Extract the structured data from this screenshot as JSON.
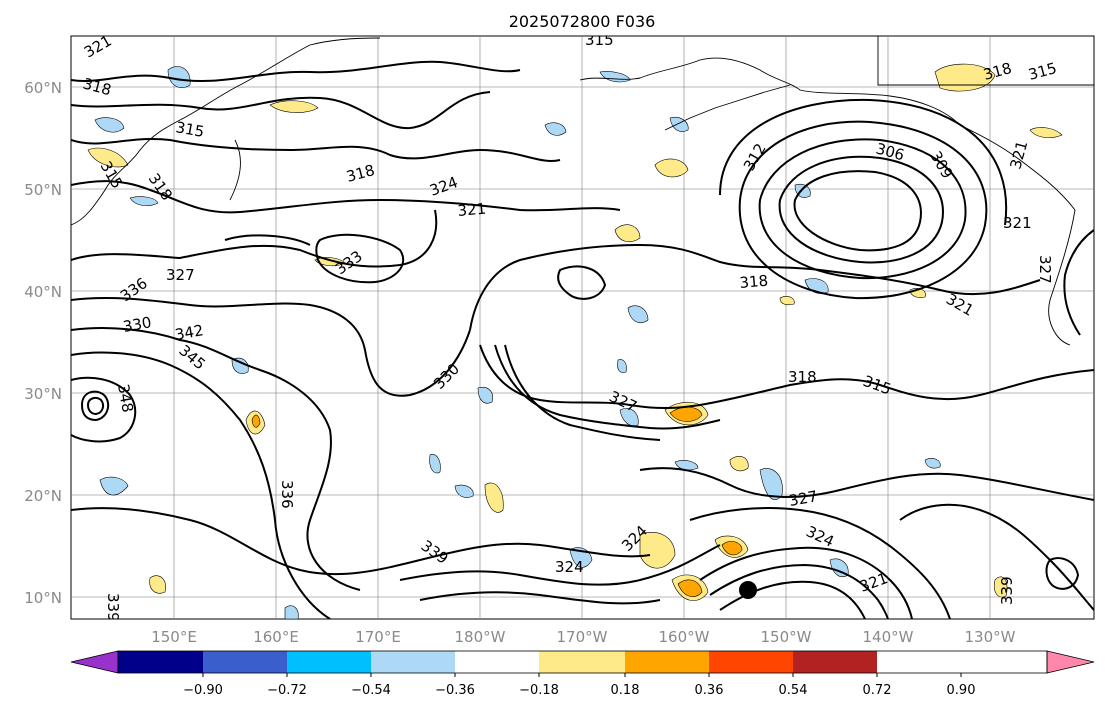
{
  "title": "2025072800 F036",
  "map": {
    "lat_labels": [
      "60°N",
      "50°N",
      "40°N",
      "30°N",
      "20°N",
      "10°N"
    ],
    "lon_labels": [
      "150°E",
      "160°E",
      "170°E",
      "180°W",
      "170°W",
      "160°W",
      "150°W",
      "140°W",
      "130°W"
    ],
    "contour_labels": [
      "321",
      "318",
      "315",
      "315",
      "318",
      "324",
      "321",
      "333",
      "327",
      "336",
      "330",
      "342",
      "345",
      "348",
      "312",
      "306",
      "309",
      "318",
      "321",
      "321",
      "318",
      "330",
      "327",
      "318",
      "315",
      "327",
      "324",
      "324",
      "321",
      "336",
      "339",
      "324",
      "339",
      "339",
      "315",
      "318",
      "315",
      "321",
      "327"
    ],
    "marker": "storm-center-dot"
  },
  "colorbar": {
    "tick_labels": [
      "−0.90",
      "−0.72",
      "−0.54",
      "−0.36",
      "−0.18",
      "0.18",
      "0.36",
      "0.54",
      "0.72",
      "0.90"
    ],
    "colors": [
      "#9932cc",
      "#00008b",
      "#3a5fcd",
      "#00bfff",
      "#add8f6",
      "#ffffff",
      "#ffea8a",
      "#ffa500",
      "#ff4500",
      "#b22222",
      "#ff88aa"
    ]
  }
}
